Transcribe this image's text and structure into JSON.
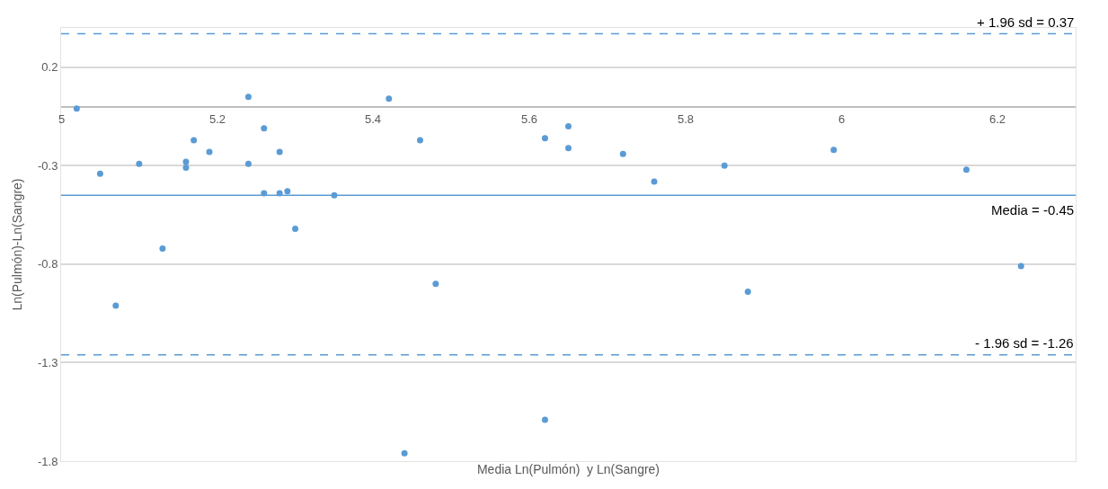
{
  "chart_data": {
    "type": "scatter",
    "xlabel": "Media Ln(Pulmón)  y Ln(Sangre)",
    "ylabel": "Ln(Pulmón)-Ln(Sangre)",
    "x": [
      5.02,
      5.05,
      5.07,
      5.1,
      5.13,
      5.16,
      5.16,
      5.17,
      5.19,
      5.24,
      5.24,
      5.26,
      5.26,
      5.28,
      5.28,
      5.29,
      5.3,
      5.35,
      5.42,
      5.44,
      5.46,
      5.48,
      5.62,
      5.62,
      5.65,
      5.65,
      5.72,
      5.76,
      5.85,
      5.88,
      5.99,
      6.16,
      6.23
    ],
    "series": [
      {
        "color": "#5b9bd5",
        "values": [
          -0.01,
          -0.34,
          -1.01,
          -0.29,
          -0.72,
          -0.28,
          -0.31,
          -0.17,
          -0.23,
          0.05,
          -0.29,
          -0.44,
          -0.11,
          -0.44,
          -0.23,
          -0.43,
          -0.62,
          -0.45,
          0.04,
          -1.76,
          -0.17,
          -0.9,
          -1.59,
          -0.16,
          -0.1,
          -0.21,
          -0.24,
          -0.38,
          -0.3,
          -0.94,
          -0.22,
          -0.32,
          -0.81
        ]
      }
    ],
    "marker": "circle",
    "xlim": [
      5,
      6.3
    ],
    "xticks": [
      5,
      5.2,
      5.4,
      5.6,
      5.8,
      6,
      6.2
    ],
    "ylim": [
      -1.8,
      0.4
    ],
    "yticks": [
      0.2,
      -0.3,
      -0.8,
      -1.3,
      -1.8
    ],
    "grid": "y",
    "ref_lines": [
      {
        "axis": "y",
        "value": 0.37,
        "label": "+ 1.96 sd = 0.37",
        "color": "#5b9bd5",
        "line_style": "dashed"
      },
      {
        "axis": "y",
        "value": -0.45,
        "label": "Media = -0.45",
        "color": "#5b9bd5",
        "line_style": "solid"
      },
      {
        "axis": "y",
        "value": -1.26,
        "label": "- 1.96 sd = -1.26",
        "color": "#5b9bd5",
        "line_style": "dashed"
      }
    ]
  }
}
